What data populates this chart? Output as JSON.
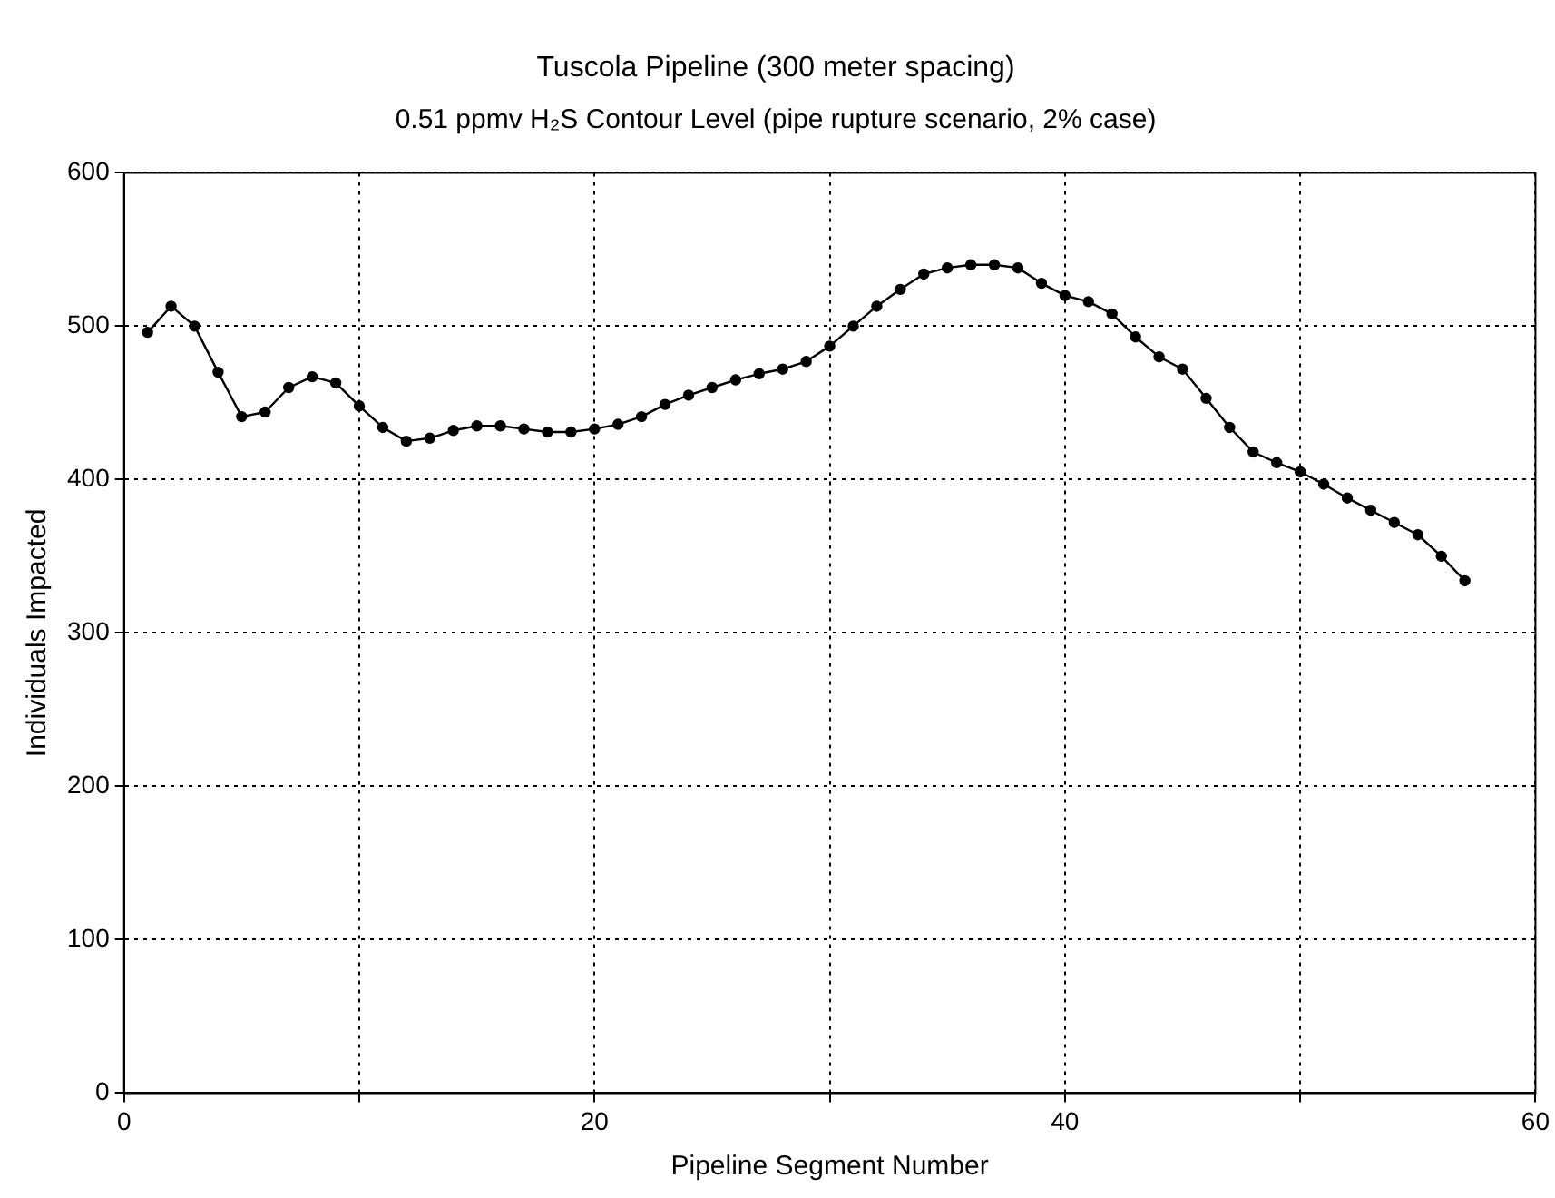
{
  "chart_data": {
    "type": "line",
    "title": "Tuscola Pipeline (300 meter spacing)",
    "subtitle": "0.51 ppmv H₂S Contour Level (pipe rupture scenario, 2% case)",
    "xlabel": "Pipeline Segment Number",
    "ylabel": "Individuals Impacted",
    "x": [
      1,
      2,
      3,
      4,
      5,
      6,
      7,
      8,
      9,
      10,
      11,
      12,
      13,
      14,
      15,
      16,
      17,
      18,
      19,
      20,
      21,
      22,
      23,
      24,
      25,
      26,
      27,
      28,
      29,
      30,
      31,
      32,
      33,
      34,
      35,
      36,
      37,
      38,
      39,
      40,
      41,
      42,
      43,
      44,
      45,
      46,
      47,
      48,
      49,
      50,
      51,
      52,
      53,
      54,
      55,
      56,
      57
    ],
    "series": [
      {
        "color": "#000000",
        "values": [
          496,
          513,
          500,
          470,
          441,
          444,
          460,
          467,
          463,
          448,
          434,
          425,
          427,
          432,
          435,
          435,
          433,
          431,
          431,
          433,
          436,
          441,
          449,
          455,
          460,
          465,
          469,
          472,
          477,
          487,
          500,
          513,
          524,
          534,
          538,
          540,
          540,
          538,
          528,
          520,
          516,
          508,
          493,
          480,
          472,
          453,
          434,
          418,
          411,
          405,
          397,
          388,
          380,
          372,
          364,
          350,
          334
        ]
      }
    ],
    "xlim": [
      0,
      60
    ],
    "xticks": [
      0,
      {
        "value": 10,
        "label": null
      },
      20,
      {
        "value": 30,
        "label": null
      },
      40,
      {
        "value": 50,
        "label": null
      },
      60
    ],
    "ylim": [
      0,
      600
    ],
    "yticks": [
      0,
      100,
      200,
      300,
      400,
      500,
      600
    ],
    "grid": true,
    "legend": false,
    "marker": "circle",
    "line_style": "solid"
  }
}
